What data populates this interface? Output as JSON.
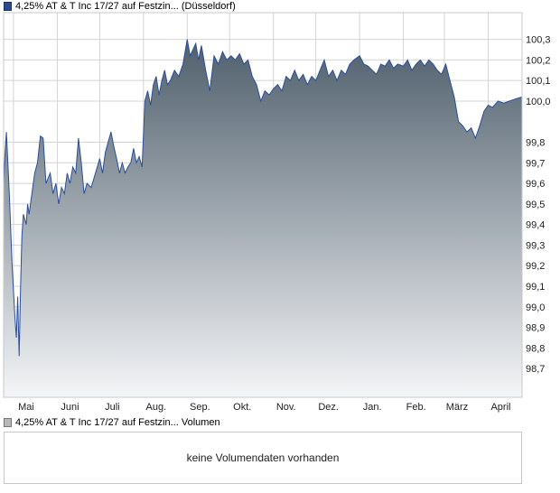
{
  "legend": {
    "price_label": "4,25% AT & T Inc 17/27 auf Festzin... (Düsseldorf)",
    "volume_label": "4,25% AT & T Inc 17/27 auf Festzin... Volumen"
  },
  "volume_panel": {
    "message": "keine Volumendaten vorhanden"
  },
  "colors": {
    "line": "#2a4f9c",
    "area_top": "#4f5f6c",
    "area_bottom": "#f4f5f7",
    "grid": "#d4d4d4"
  },
  "chart_data": {
    "type": "area",
    "title": "",
    "xlabel": "",
    "ylabel": "",
    "grid": true,
    "y_axis_position": "right",
    "ylim": [
      98.56,
      100.43
    ],
    "y_ticks": [
      "100,3",
      "100,2",
      "100,1",
      "100,0",
      "99,8",
      "99,7",
      "99,6",
      "99,5",
      "99,4",
      "99,3",
      "99,2",
      "99,1",
      "99,0",
      "98,9",
      "98,8",
      "98,7"
    ],
    "x_ticks": [
      "Mai",
      "Juni",
      "Juli",
      "Aug.",
      "Sep.",
      "Okt.",
      "Nov.",
      "Dez.",
      "Jan.",
      "Feb.",
      "März",
      "April"
    ],
    "x_start": "2019-04-24",
    "x_end": "2020-04-25",
    "series": [
      {
        "points": [
          [
            "2019-04-24",
            99.6
          ],
          [
            "2019-04-25",
            99.75
          ],
          [
            "2019-04-26",
            99.85
          ],
          [
            "2019-04-28",
            99.55
          ],
          [
            "2019-04-30",
            99.2
          ],
          [
            "2019-05-02",
            98.95
          ],
          [
            "2019-05-03",
            98.85
          ],
          [
            "2019-05-04",
            99.05
          ],
          [
            "2019-05-05",
            98.76
          ],
          [
            "2019-05-06",
            99.1
          ],
          [
            "2019-05-07",
            99.35
          ],
          [
            "2019-05-08",
            99.45
          ],
          [
            "2019-05-10",
            99.4
          ],
          [
            "2019-05-11",
            99.5
          ],
          [
            "2019-05-12",
            99.45
          ],
          [
            "2019-05-14",
            99.55
          ],
          [
            "2019-05-16",
            99.65
          ],
          [
            "2019-05-18",
            99.7
          ],
          [
            "2019-05-20",
            99.83
          ],
          [
            "2019-05-22",
            99.82
          ],
          [
            "2019-05-24",
            99.6
          ],
          [
            "2019-05-27",
            99.65
          ],
          [
            "2019-05-29",
            99.55
          ],
          [
            "2019-05-31",
            99.6
          ],
          [
            "2019-06-02",
            99.5
          ],
          [
            "2019-06-04",
            99.58
          ],
          [
            "2019-06-06",
            99.55
          ],
          [
            "2019-06-08",
            99.65
          ],
          [
            "2019-06-10",
            99.6
          ],
          [
            "2019-06-12",
            99.68
          ],
          [
            "2019-06-14",
            99.65
          ],
          [
            "2019-06-16",
            99.82
          ],
          [
            "2019-06-18",
            99.7
          ],
          [
            "2019-06-20",
            99.55
          ],
          [
            "2019-06-22",
            99.6
          ],
          [
            "2019-06-25",
            99.58
          ],
          [
            "2019-06-28",
            99.65
          ],
          [
            "2019-07-01",
            99.72
          ],
          [
            "2019-07-03",
            99.65
          ],
          [
            "2019-07-05",
            99.75
          ],
          [
            "2019-07-07",
            99.8
          ],
          [
            "2019-07-09",
            99.85
          ],
          [
            "2019-07-11",
            99.78
          ],
          [
            "2019-07-13",
            99.72
          ],
          [
            "2019-07-15",
            99.65
          ],
          [
            "2019-07-17",
            99.7
          ],
          [
            "2019-07-19",
            99.65
          ],
          [
            "2019-07-21",
            99.68
          ],
          [
            "2019-07-23",
            99.7
          ],
          [
            "2019-07-25",
            99.77
          ],
          [
            "2019-07-27",
            99.7
          ],
          [
            "2019-07-29",
            99.73
          ],
          [
            "2019-07-31",
            99.68
          ],
          [
            "2019-08-02",
            100.0
          ],
          [
            "2019-08-04",
            100.05
          ],
          [
            "2019-08-06",
            99.98
          ],
          [
            "2019-08-08",
            100.08
          ],
          [
            "2019-08-10",
            100.12
          ],
          [
            "2019-08-12",
            100.03
          ],
          [
            "2019-08-14",
            100.1
          ],
          [
            "2019-08-16",
            100.15
          ],
          [
            "2019-08-18",
            100.08
          ],
          [
            "2019-08-20",
            100.1
          ],
          [
            "2019-08-23",
            100.15
          ],
          [
            "2019-08-26",
            100.12
          ],
          [
            "2019-08-29",
            100.18
          ],
          [
            "2019-09-01",
            100.3
          ],
          [
            "2019-09-03",
            100.22
          ],
          [
            "2019-09-05",
            100.25
          ],
          [
            "2019-09-07",
            100.28
          ],
          [
            "2019-09-09",
            100.2
          ],
          [
            "2019-09-11",
            100.27
          ],
          [
            "2019-09-14",
            100.15
          ],
          [
            "2019-09-17",
            100.05
          ],
          [
            "2019-09-20",
            100.22
          ],
          [
            "2019-09-23",
            100.18
          ],
          [
            "2019-09-26",
            100.24
          ],
          [
            "2019-09-29",
            100.2
          ],
          [
            "2019-10-02",
            100.22
          ],
          [
            "2019-10-05",
            100.2
          ],
          [
            "2019-10-08",
            100.23
          ],
          [
            "2019-10-11",
            100.18
          ],
          [
            "2019-10-14",
            100.2
          ],
          [
            "2019-10-17",
            100.12
          ],
          [
            "2019-10-20",
            100.08
          ],
          [
            "2019-10-23",
            100.0
          ],
          [
            "2019-10-26",
            100.05
          ],
          [
            "2019-10-29",
            100.03
          ],
          [
            "2019-11-01",
            100.06
          ],
          [
            "2019-11-04",
            100.08
          ],
          [
            "2019-11-07",
            100.05
          ],
          [
            "2019-11-10",
            100.12
          ],
          [
            "2019-11-13",
            100.1
          ],
          [
            "2019-11-16",
            100.15
          ],
          [
            "2019-11-19",
            100.1
          ],
          [
            "2019-11-22",
            100.13
          ],
          [
            "2019-11-25",
            100.08
          ],
          [
            "2019-11-28",
            100.12
          ],
          [
            "2019-12-01",
            100.1
          ],
          [
            "2019-12-04",
            100.15
          ],
          [
            "2019-12-07",
            100.2
          ],
          [
            "2019-12-10",
            100.12
          ],
          [
            "2019-12-13",
            100.15
          ],
          [
            "2019-12-16",
            100.1
          ],
          [
            "2019-12-19",
            100.15
          ],
          [
            "2019-12-22",
            100.13
          ],
          [
            "2019-12-25",
            100.18
          ],
          [
            "2019-12-28",
            100.2
          ],
          [
            "2020-01-01",
            100.22
          ],
          [
            "2020-01-04",
            100.18
          ],
          [
            "2020-01-07",
            100.17
          ],
          [
            "2020-01-10",
            100.15
          ],
          [
            "2020-01-13",
            100.13
          ],
          [
            "2020-01-16",
            100.18
          ],
          [
            "2020-01-19",
            100.17
          ],
          [
            "2020-01-22",
            100.2
          ],
          [
            "2020-01-25",
            100.16
          ],
          [
            "2020-01-28",
            100.18
          ],
          [
            "2020-02-01",
            100.17
          ],
          [
            "2020-02-04",
            100.2
          ],
          [
            "2020-02-07",
            100.15
          ],
          [
            "2020-02-10",
            100.18
          ],
          [
            "2020-02-13",
            100.2
          ],
          [
            "2020-02-16",
            100.17
          ],
          [
            "2020-02-19",
            100.2
          ],
          [
            "2020-02-22",
            100.18
          ],
          [
            "2020-02-25",
            100.15
          ],
          [
            "2020-02-28",
            100.13
          ],
          [
            "2020-03-02",
            100.18
          ],
          [
            "2020-03-05",
            100.1
          ],
          [
            "2020-03-08",
            100.02
          ],
          [
            "2020-03-11",
            99.9
          ],
          [
            "2020-03-14",
            99.88
          ],
          [
            "2020-03-17",
            99.85
          ],
          [
            "2020-03-20",
            99.87
          ],
          [
            "2020-03-23",
            99.82
          ],
          [
            "2020-03-26",
            99.88
          ],
          [
            "2020-03-29",
            99.95
          ],
          [
            "2020-04-01",
            99.98
          ],
          [
            "2020-04-04",
            99.97
          ],
          [
            "2020-04-08",
            100.0
          ],
          [
            "2020-04-12",
            99.99
          ],
          [
            "2020-04-16",
            100.0
          ],
          [
            "2020-04-20",
            100.01
          ],
          [
            "2020-04-25",
            100.02
          ]
        ]
      }
    ]
  }
}
